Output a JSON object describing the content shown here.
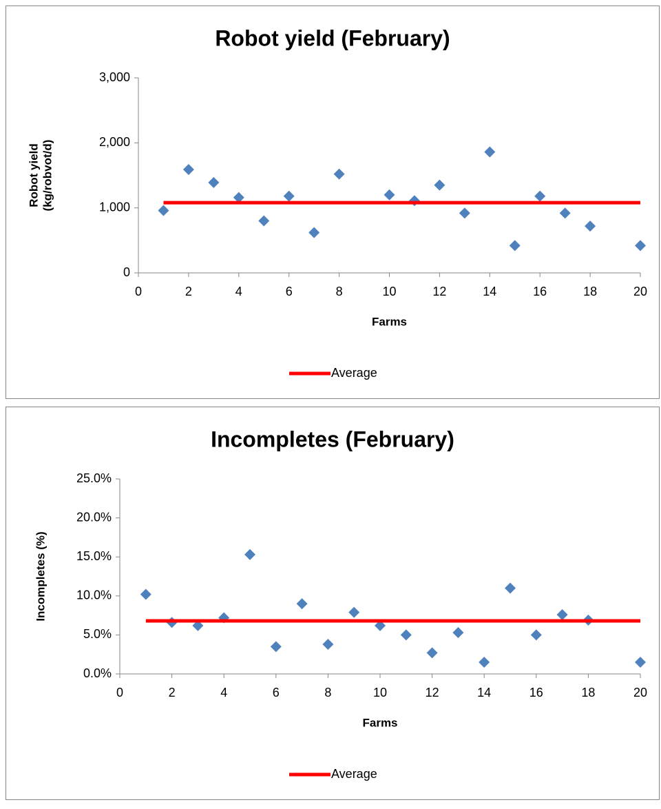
{
  "chart_data": [
    {
      "type": "scatter",
      "title": "Robot yield (February)",
      "xlabel": "Farms",
      "ylabel": [
        "Robot yield",
        "(kg/robvot/d)"
      ],
      "xlim": [
        0,
        20
      ],
      "xticks": [
        0,
        2,
        4,
        6,
        8,
        10,
        12,
        14,
        16,
        18,
        20
      ],
      "ylim": [
        0,
        3000
      ],
      "yticks": [
        0,
        {
          "value": 1000,
          "label": "1,000"
        },
        {
          "value": 2000,
          "label": "2,000"
        },
        {
          "value": 3000,
          "label": "3,000"
        }
      ],
      "legend": "bottom",
      "series": [
        {
          "color": "#4f81bd",
          "mode": "markers",
          "x": [
            1,
            2,
            3,
            4,
            5,
            6,
            7,
            8,
            10,
            11,
            12,
            13,
            14,
            15,
            16,
            17,
            18,
            20
          ],
          "values": [
            960,
            1590,
            1390,
            1160,
            800,
            1180,
            620,
            1520,
            1200,
            1110,
            1350,
            920,
            1860,
            420,
            1180,
            920,
            720,
            420
          ]
        },
        {
          "name": "Average",
          "color": "#ff0000",
          "mode": "line",
          "x": [
            1,
            20
          ],
          "values": [
            1080,
            1080
          ]
        }
      ]
    },
    {
      "type": "scatter",
      "title": "Incompletes (February)",
      "xlabel": "Farms",
      "ylabel": [
        "Incompletes (%)"
      ],
      "xlim": [
        0,
        20
      ],
      "xticks": [
        0,
        2,
        4,
        6,
        8,
        10,
        12,
        14,
        16,
        18,
        20
      ],
      "ylim": [
        0,
        25
      ],
      "yticks": [
        {
          "value": 0,
          "label": "0.0%"
        },
        {
          "value": 5,
          "label": "5.0%"
        },
        {
          "value": 10,
          "label": "10.0%"
        },
        {
          "value": 15,
          "label": "15.0%"
        },
        {
          "value": 20,
          "label": "20.0%"
        },
        {
          "value": 25,
          "label": "25.0%"
        }
      ],
      "legend": "bottom",
      "series": [
        {
          "color": "#4f81bd",
          "mode": "markers",
          "x": [
            1,
            2,
            3,
            4,
            5,
            6,
            7,
            8,
            9,
            10,
            11,
            12,
            13,
            14,
            15,
            16,
            17,
            18,
            20
          ],
          "values": [
            10.2,
            6.6,
            6.2,
            7.2,
            15.3,
            3.5,
            9.0,
            3.8,
            7.9,
            6.2,
            5.0,
            2.7,
            5.3,
            1.5,
            11.0,
            5.0,
            7.6,
            6.9,
            1.5
          ]
        },
        {
          "name": "Average",
          "color": "#ff0000",
          "mode": "line",
          "x": [
            1,
            20
          ],
          "values": [
            6.8,
            6.8
          ]
        }
      ]
    }
  ]
}
